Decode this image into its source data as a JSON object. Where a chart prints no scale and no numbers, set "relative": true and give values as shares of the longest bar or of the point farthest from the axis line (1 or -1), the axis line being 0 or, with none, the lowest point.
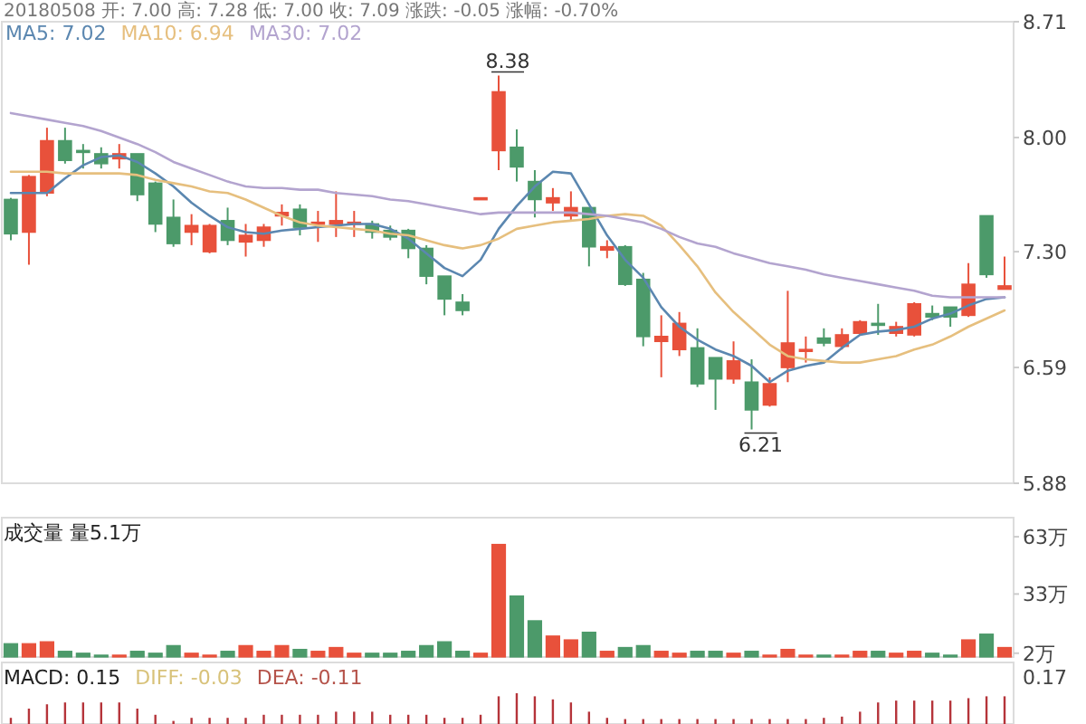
{
  "chart_data": [
    {
      "type": "candlestick",
      "title": "20180508 开: 7.00 高: 7.28 低: 7.00 收: 7.09 涨跌: -0.05 涨幅: -0.70%",
      "categories": [
        null,
        null,
        null,
        null,
        null,
        null,
        null,
        null,
        null,
        null,
        null,
        null,
        null,
        null,
        null,
        null,
        null,
        null,
        null,
        null,
        null,
        null,
        null,
        null,
        null,
        null,
        null,
        null,
        null,
        null,
        null,
        null,
        null,
        null,
        null,
        null,
        null,
        null,
        null,
        null,
        null,
        null,
        null,
        null,
        null,
        null,
        null,
        null,
        null,
        null,
        null,
        null,
        null,
        null,
        null,
        null
      ],
      "ohlc": [
        [
          7.62,
          7.63,
          7.37,
          7.41
        ],
        [
          7.42,
          7.77,
          7.22,
          7.76
        ],
        [
          7.66,
          8.06,
          7.64,
          7.98
        ],
        [
          7.98,
          8.06,
          7.84,
          7.86
        ],
        [
          7.92,
          7.96,
          7.81,
          7.91
        ],
        [
          7.9,
          7.94,
          7.81,
          7.84
        ],
        [
          7.87,
          7.96,
          7.81,
          7.9
        ],
        [
          7.9,
          7.9,
          7.61,
          7.65
        ],
        [
          7.72,
          7.73,
          7.42,
          7.47
        ],
        [
          7.51,
          7.62,
          7.33,
          7.35
        ],
        [
          7.42,
          7.53,
          7.34,
          7.46
        ],
        [
          7.3,
          7.47,
          7.29,
          7.46
        ],
        [
          7.49,
          7.57,
          7.34,
          7.37
        ],
        [
          7.36,
          7.47,
          7.27,
          7.4
        ],
        [
          7.37,
          7.47,
          7.33,
          7.45
        ],
        [
          7.52,
          7.59,
          7.46,
          7.54
        ],
        [
          7.56,
          7.59,
          7.4,
          7.45
        ],
        [
          7.47,
          7.55,
          7.36,
          7.48
        ],
        [
          7.47,
          7.67,
          7.39,
          7.49
        ],
        [
          7.47,
          7.55,
          7.39,
          7.48
        ],
        [
          7.47,
          7.49,
          7.38,
          7.42
        ],
        [
          7.43,
          7.46,
          7.37,
          7.39
        ],
        [
          7.43,
          7.44,
          7.26,
          7.32
        ],
        [
          7.32,
          7.34,
          7.1,
          7.15
        ],
        [
          7.15,
          7.15,
          6.91,
          7.01
        ],
        [
          6.99,
          7.04,
          6.91,
          6.94
        ],
        [
          7.63,
          7.63,
          7.63,
          7.63
        ],
        [
          7.92,
          8.38,
          7.8,
          8.28
        ],
        [
          7.94,
          8.05,
          7.73,
          7.82
        ],
        [
          7.73,
          7.8,
          7.51,
          7.62
        ],
        [
          7.6,
          7.69,
          7.55,
          7.63
        ],
        [
          7.52,
          7.67,
          7.49,
          7.57
        ],
        [
          7.57,
          7.57,
          7.21,
          7.33
        ],
        [
          7.31,
          7.37,
          7.26,
          7.33
        ],
        [
          7.33,
          7.34,
          7.09,
          7.1
        ],
        [
          7.13,
          7.17,
          6.72,
          6.78
        ],
        [
          6.75,
          6.91,
          6.53,
          6.78
        ],
        [
          6.7,
          6.93,
          6.66,
          6.86
        ],
        [
          6.71,
          6.83,
          6.47,
          6.49
        ],
        [
          6.65,
          6.65,
          6.33,
          6.52
        ],
        [
          6.52,
          6.75,
          6.49,
          6.63
        ],
        [
          6.5,
          6.64,
          6.21,
          6.33
        ],
        [
          6.36,
          6.53,
          6.35,
          6.49
        ],
        [
          6.59,
          7.06,
          6.5,
          6.74
        ],
        [
          6.69,
          6.78,
          6.62,
          6.7
        ],
        [
          6.77,
          6.83,
          6.72,
          6.74
        ],
        [
          6.72,
          6.83,
          6.7,
          6.79
        ],
        [
          6.8,
          6.88,
          6.79,
          6.87
        ],
        [
          6.86,
          6.98,
          6.79,
          6.85
        ],
        [
          6.8,
          6.87,
          6.78,
          6.84
        ],
        [
          6.79,
          6.99,
          6.78,
          6.98
        ],
        [
          6.92,
          6.97,
          6.88,
          6.9
        ],
        [
          6.96,
          6.96,
          6.84,
          6.9
        ],
        [
          6.91,
          7.23,
          6.9,
          7.1
        ],
        [
          7.52,
          7.52,
          7.14,
          7.16
        ],
        [
          7.07,
          7.27,
          7.07,
          7.09
        ]
      ],
      "colors": [
        "#4c9a6a",
        "#e8513b",
        "#e8513b",
        "#4c9a6a",
        "#4c9a6a",
        "#4c9a6a",
        "#e8513b",
        "#4c9a6a",
        "#4c9a6a",
        "#4c9a6a",
        "#e8513b",
        "#e8513b",
        "#4c9a6a",
        "#e8513b",
        "#e8513b",
        "#e8513b",
        "#4c9a6a",
        "#e8513b",
        "#e8513b",
        "#e8513b",
        "#4c9a6a",
        "#4c9a6a",
        "#4c9a6a",
        "#4c9a6a",
        "#4c9a6a",
        "#4c9a6a",
        "#e8513b",
        "#e8513b",
        "#4c9a6a",
        "#4c9a6a",
        "#e8513b",
        "#e8513b",
        "#4c9a6a",
        "#e8513b",
        "#4c9a6a",
        "#4c9a6a",
        "#e8513b",
        "#e8513b",
        "#4c9a6a",
        "#4c9a6a",
        "#e8513b",
        "#4c9a6a",
        "#e8513b",
        "#e8513b",
        "#e8513b",
        "#4c9a6a",
        "#e8513b",
        "#e8513b",
        "#4c9a6a",
        "#e8513b",
        "#e8513b",
        "#4c9a6a",
        "#4c9a6a",
        "#e8513b",
        "#4c9a6a",
        "#e8513b"
      ],
      "series": [
        {
          "type": "line",
          "name": "MA5: 7.02",
          "color": "#5b87b0",
          "values": [
            7.66,
            7.66,
            7.66,
            7.75,
            7.83,
            7.88,
            7.89,
            7.85,
            7.78,
            7.7,
            7.6,
            7.52,
            7.45,
            7.42,
            7.41,
            7.43,
            7.44,
            7.45,
            7.46,
            7.47,
            7.47,
            7.44,
            7.38,
            7.29,
            7.2,
            7.15,
            7.25,
            7.44,
            7.58,
            7.7,
            7.79,
            7.78,
            7.59,
            7.4,
            7.25,
            7.14,
            6.96,
            6.84,
            6.76,
            6.7,
            6.66,
            6.6,
            6.5,
            6.57,
            6.6,
            6.62,
            6.71,
            6.79,
            6.81,
            6.82,
            6.84,
            6.89,
            6.92,
            6.97,
            7.01,
            7.02
          ]
        },
        {
          "type": "line",
          "name": "MA10: 6.94",
          "color": "#e6bf7e",
          "values": [
            7.79,
            7.79,
            7.79,
            7.78,
            7.78,
            7.78,
            7.78,
            7.77,
            7.74,
            7.72,
            7.7,
            7.67,
            7.66,
            7.62,
            7.57,
            7.52,
            7.48,
            7.46,
            7.45,
            7.44,
            7.43,
            7.41,
            7.4,
            7.37,
            7.34,
            7.32,
            7.34,
            7.38,
            7.44,
            7.46,
            7.48,
            7.49,
            7.5,
            7.52,
            7.53,
            7.52,
            7.46,
            7.34,
            7.21,
            7.05,
            6.93,
            6.83,
            6.73,
            6.66,
            6.64,
            6.63,
            6.62,
            6.62,
            6.64,
            6.66,
            6.7,
            6.73,
            6.78,
            6.84,
            6.89,
            6.94
          ]
        },
        {
          "type": "line",
          "name": "MA30: 7.02",
          "color": "#b3a4cf",
          "values": [
            8.15,
            8.13,
            8.11,
            8.09,
            8.07,
            8.04,
            8.0,
            7.96,
            7.91,
            7.85,
            7.81,
            7.77,
            7.73,
            7.7,
            7.69,
            7.69,
            7.68,
            7.68,
            7.66,
            7.65,
            7.64,
            7.62,
            7.61,
            7.59,
            7.57,
            7.55,
            7.53,
            7.54,
            7.54,
            7.54,
            7.54,
            7.54,
            7.53,
            7.52,
            7.5,
            7.48,
            7.44,
            7.39,
            7.35,
            7.33,
            7.29,
            7.26,
            7.23,
            7.21,
            7.19,
            7.16,
            7.14,
            7.12,
            7.1,
            7.08,
            7.06,
            7.03,
            7.02,
            7.02,
            7.02,
            7.02
          ]
        }
      ],
      "legend": "top left",
      "annotations": [
        "8.38",
        "6.21"
      ],
      "ylim": [
        5.88,
        8.71
      ],
      "yticks": [
        5.88,
        6.59,
        {
          "value": 7.3,
          "label": "7.30"
        },
        {
          "value": 8,
          "label": "8.00"
        },
        8.71
      ]
    },
    {
      "type": "bar",
      "title": "成交量 量5.1万",
      "categories": [
        null,
        null,
        null,
        null,
        null,
        null,
        null,
        null,
        null,
        null,
        null,
        null,
        null,
        null,
        null,
        null,
        null,
        null,
        null,
        null,
        null,
        null,
        null,
        null,
        null,
        null,
        null,
        null,
        null,
        null,
        null,
        null,
        null,
        null,
        null,
        null,
        null,
        null,
        null,
        null,
        null,
        null,
        null,
        null,
        null,
        null,
        null,
        null,
        null,
        null,
        null,
        null,
        null,
        null,
        null,
        null
      ],
      "values": [
        7,
        7,
        8,
        3,
        2,
        1,
        1,
        3,
        2,
        6,
        2,
        1,
        3,
        6,
        3,
        6,
        4,
        3,
        5,
        2,
        2,
        2,
        3,
        6,
        8,
        3,
        2,
        59,
        32,
        19,
        11,
        9,
        13,
        3,
        5,
        6,
        3,
        2,
        3,
        3,
        2,
        3,
        1,
        4,
        1,
        1,
        1,
        3,
        3,
        2,
        3,
        2,
        1,
        9,
        12,
        5
      ],
      "colors": [
        "#4c9a6a",
        "#e8513b",
        "#e8513b",
        "#4c9a6a",
        "#4c9a6a",
        "#4c9a6a",
        "#e8513b",
        "#4c9a6a",
        "#4c9a6a",
        "#4c9a6a",
        "#e8513b",
        "#e8513b",
        "#4c9a6a",
        "#e8513b",
        "#e8513b",
        "#e8513b",
        "#4c9a6a",
        "#e8513b",
        "#e8513b",
        "#e8513b",
        "#4c9a6a",
        "#4c9a6a",
        "#4c9a6a",
        "#4c9a6a",
        "#4c9a6a",
        "#4c9a6a",
        "#e8513b",
        "#e8513b",
        "#4c9a6a",
        "#4c9a6a",
        "#e8513b",
        "#e8513b",
        "#4c9a6a",
        "#e8513b",
        "#4c9a6a",
        "#4c9a6a",
        "#e8513b",
        "#e8513b",
        "#4c9a6a",
        "#4c9a6a",
        "#e8513b",
        "#4c9a6a",
        "#e8513b",
        "#e8513b",
        "#e8513b",
        "#4c9a6a",
        "#e8513b",
        "#e8513b",
        "#4c9a6a",
        "#e8513b",
        "#e8513b",
        "#4c9a6a",
        "#4c9a6a",
        "#e8513b",
        "#4c9a6a",
        "#e8513b"
      ],
      "ylim": [
        0,
        73
      ],
      "yticks": [
        {
          "value": 2,
          "label": "2万"
        },
        {
          "value": 33,
          "label": "33万"
        },
        {
          "value": 63,
          "label": "63万"
        }
      ]
    },
    {
      "type": "bar",
      "title": "MACD: 0.15",
      "relative": true,
      "categories": [
        null,
        null,
        null,
        null,
        null,
        null,
        null,
        null,
        null,
        null,
        null,
        null,
        null,
        null,
        null,
        null,
        null,
        null,
        null,
        null,
        null,
        null,
        null,
        null,
        null,
        null,
        null,
        null,
        null,
        null,
        null,
        null,
        null,
        null,
        null,
        null,
        null,
        null,
        null,
        null,
        null,
        null,
        null,
        null,
        null,
        null,
        null,
        null,
        null,
        null,
        null,
        null,
        null,
        null,
        null,
        null
      ],
      "values": [
        0.2,
        0.5,
        0.64,
        0.7,
        0.7,
        0.7,
        0.7,
        0.5,
        0.3,
        0.1,
        0.2,
        0.2,
        0.2,
        0.2,
        0.3,
        0.3,
        0.3,
        0.3,
        0.4,
        0.4,
        0.4,
        0.3,
        0.3,
        0.3,
        0.2,
        0.2,
        0.3,
        0.9,
        1,
        0.9,
        0.8,
        0.7,
        0.4,
        0.2,
        0.16,
        0.16,
        0.16,
        0.16,
        0.16,
        0.16,
        0.16,
        0.16,
        0.16,
        0.16,
        0.16,
        0.2,
        0.24,
        0.4,
        0.7,
        0.76,
        0.76,
        0.76,
        0.76,
        0.84,
        0.9,
        0.9
      ],
      "color": "#b5343a",
      "annotations": [
        "DIFF: -0.03",
        "DEA: -0.11",
        "0.17"
      ]
    }
  ]
}
